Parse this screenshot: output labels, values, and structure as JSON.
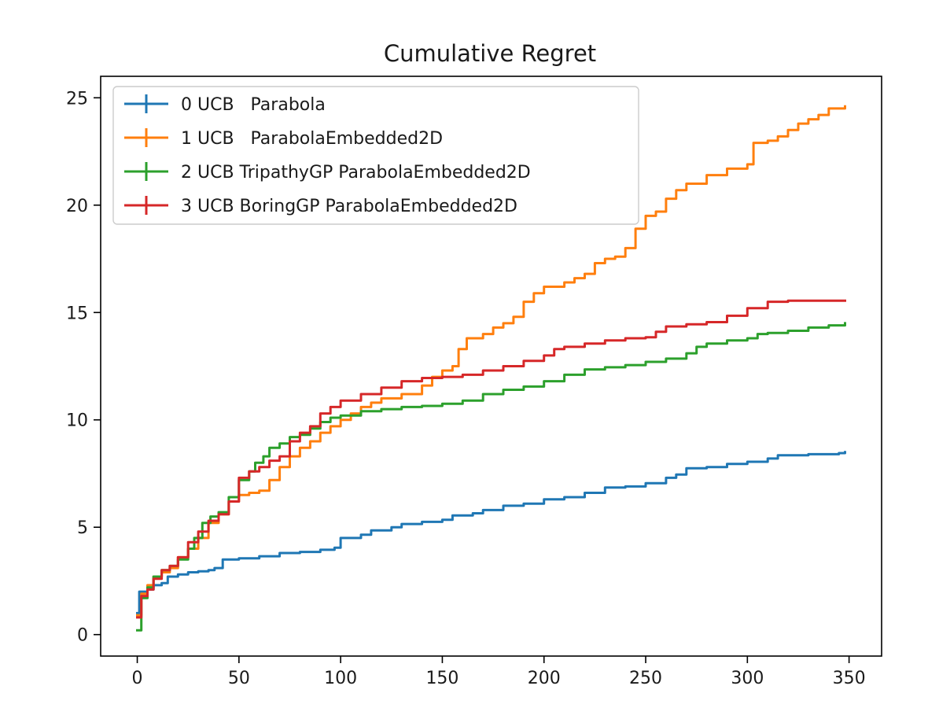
{
  "chart_data": {
    "type": "line",
    "title": "Cumulative Regret",
    "xlabel": "",
    "ylabel": "",
    "xlim": [
      -18,
      366
    ],
    "ylim": [
      -1,
      26
    ],
    "xticks": [
      0,
      50,
      100,
      150,
      200,
      250,
      300,
      350
    ],
    "yticks": [
      0,
      5,
      10,
      15,
      20,
      25
    ],
    "grid": false,
    "legend_position": "upper-left",
    "series": [
      {
        "name": "0 UCB   Parabola",
        "color": "#1f77b4",
        "points": [
          [
            0,
            1.0
          ],
          [
            1,
            2.0
          ],
          [
            5,
            2.1
          ],
          [
            8,
            2.3
          ],
          [
            12,
            2.4
          ],
          [
            15,
            2.7
          ],
          [
            20,
            2.8
          ],
          [
            25,
            2.9
          ],
          [
            30,
            2.95
          ],
          [
            35,
            3.0
          ],
          [
            38,
            3.1
          ],
          [
            42,
            3.5
          ],
          [
            50,
            3.55
          ],
          [
            60,
            3.65
          ],
          [
            70,
            3.8
          ],
          [
            80,
            3.85
          ],
          [
            90,
            3.95
          ],
          [
            97,
            4.05
          ],
          [
            100,
            4.5
          ],
          [
            110,
            4.65
          ],
          [
            115,
            4.85
          ],
          [
            125,
            5.0
          ],
          [
            130,
            5.15
          ],
          [
            140,
            5.25
          ],
          [
            150,
            5.35
          ],
          [
            155,
            5.55
          ],
          [
            165,
            5.65
          ],
          [
            170,
            5.8
          ],
          [
            180,
            6.0
          ],
          [
            190,
            6.1
          ],
          [
            200,
            6.3
          ],
          [
            210,
            6.4
          ],
          [
            220,
            6.6
          ],
          [
            230,
            6.85
          ],
          [
            240,
            6.9
          ],
          [
            250,
            7.05
          ],
          [
            260,
            7.3
          ],
          [
            265,
            7.45
          ],
          [
            270,
            7.75
          ],
          [
            280,
            7.8
          ],
          [
            290,
            7.95
          ],
          [
            300,
            8.05
          ],
          [
            310,
            8.2
          ],
          [
            315,
            8.35
          ],
          [
            330,
            8.4
          ],
          [
            345,
            8.45
          ],
          [
            348,
            8.5
          ]
        ]
      },
      {
        "name": "1 UCB   ParabolaEmbedded2D",
        "color": "#ff7f0e",
        "points": [
          [
            0,
            0.9
          ],
          [
            2,
            1.9
          ],
          [
            5,
            2.3
          ],
          [
            8,
            2.7
          ],
          [
            12,
            2.9
          ],
          [
            16,
            3.1
          ],
          [
            20,
            3.6
          ],
          [
            25,
            4.0
          ],
          [
            30,
            4.5
          ],
          [
            35,
            5.2
          ],
          [
            40,
            5.6
          ],
          [
            45,
            6.2
          ],
          [
            50,
            6.5
          ],
          [
            55,
            6.6
          ],
          [
            60,
            6.7
          ],
          [
            65,
            7.2
          ],
          [
            70,
            7.8
          ],
          [
            75,
            8.3
          ],
          [
            80,
            8.7
          ],
          [
            85,
            9.0
          ],
          [
            90,
            9.4
          ],
          [
            95,
            9.7
          ],
          [
            100,
            10.0
          ],
          [
            105,
            10.3
          ],
          [
            110,
            10.6
          ],
          [
            115,
            10.8
          ],
          [
            120,
            11.0
          ],
          [
            130,
            11.2
          ],
          [
            140,
            11.6
          ],
          [
            145,
            12.0
          ],
          [
            150,
            12.3
          ],
          [
            155,
            12.5
          ],
          [
            158,
            13.3
          ],
          [
            162,
            13.8
          ],
          [
            170,
            14.0
          ],
          [
            175,
            14.3
          ],
          [
            180,
            14.5
          ],
          [
            185,
            14.8
          ],
          [
            190,
            15.5
          ],
          [
            195,
            15.9
          ],
          [
            200,
            16.2
          ],
          [
            210,
            16.4
          ],
          [
            215,
            16.6
          ],
          [
            220,
            16.8
          ],
          [
            225,
            17.3
          ],
          [
            230,
            17.5
          ],
          [
            235,
            17.6
          ],
          [
            240,
            18.0
          ],
          [
            245,
            18.9
          ],
          [
            250,
            19.5
          ],
          [
            255,
            19.7
          ],
          [
            260,
            20.3
          ],
          [
            265,
            20.7
          ],
          [
            270,
            21.0
          ],
          [
            280,
            21.4
          ],
          [
            290,
            21.7
          ],
          [
            300,
            21.9
          ],
          [
            303,
            22.9
          ],
          [
            310,
            23.0
          ],
          [
            315,
            23.2
          ],
          [
            320,
            23.5
          ],
          [
            325,
            23.8
          ],
          [
            330,
            24.0
          ],
          [
            335,
            24.2
          ],
          [
            340,
            24.5
          ],
          [
            348,
            24.6
          ]
        ]
      },
      {
        "name": "2 UCB TripathyGP ParabolaEmbedded2D",
        "color": "#2ca02c",
        "points": [
          [
            0,
            0.2
          ],
          [
            2,
            1.7
          ],
          [
            5,
            2.2
          ],
          [
            8,
            2.7
          ],
          [
            12,
            3.0
          ],
          [
            16,
            3.2
          ],
          [
            20,
            3.5
          ],
          [
            25,
            4.0
          ],
          [
            28,
            4.5
          ],
          [
            32,
            5.2
          ],
          [
            36,
            5.5
          ],
          [
            40,
            5.7
          ],
          [
            45,
            6.4
          ],
          [
            50,
            7.2
          ],
          [
            55,
            7.6
          ],
          [
            58,
            8.0
          ],
          [
            62,
            8.3
          ],
          [
            65,
            8.7
          ],
          [
            70,
            8.9
          ],
          [
            75,
            9.2
          ],
          [
            80,
            9.3
          ],
          [
            85,
            9.6
          ],
          [
            90,
            9.9
          ],
          [
            95,
            10.1
          ],
          [
            100,
            10.2
          ],
          [
            110,
            10.4
          ],
          [
            120,
            10.5
          ],
          [
            130,
            10.6
          ],
          [
            140,
            10.65
          ],
          [
            150,
            10.75
          ],
          [
            160,
            10.9
          ],
          [
            170,
            11.2
          ],
          [
            180,
            11.4
          ],
          [
            190,
            11.55
          ],
          [
            200,
            11.8
          ],
          [
            210,
            12.1
          ],
          [
            220,
            12.35
          ],
          [
            230,
            12.45
          ],
          [
            240,
            12.55
          ],
          [
            250,
            12.7
          ],
          [
            260,
            12.85
          ],
          [
            270,
            13.1
          ],
          [
            275,
            13.4
          ],
          [
            280,
            13.55
          ],
          [
            290,
            13.7
          ],
          [
            300,
            13.8
          ],
          [
            305,
            14.0
          ],
          [
            310,
            14.05
          ],
          [
            320,
            14.15
          ],
          [
            330,
            14.3
          ],
          [
            340,
            14.4
          ],
          [
            348,
            14.5
          ]
        ]
      },
      {
        "name": "3 UCB BoringGP ParabolaEmbedded2D",
        "color": "#d62728",
        "points": [
          [
            0,
            0.8
          ],
          [
            2,
            1.8
          ],
          [
            5,
            2.1
          ],
          [
            8,
            2.6
          ],
          [
            12,
            3.0
          ],
          [
            16,
            3.2
          ],
          [
            20,
            3.6
          ],
          [
            25,
            4.3
          ],
          [
            30,
            4.8
          ],
          [
            35,
            5.3
          ],
          [
            40,
            5.6
          ],
          [
            45,
            6.2
          ],
          [
            50,
            7.3
          ],
          [
            55,
            7.6
          ],
          [
            60,
            7.8
          ],
          [
            65,
            8.1
          ],
          [
            70,
            8.3
          ],
          [
            75,
            9.0
          ],
          [
            80,
            9.4
          ],
          [
            85,
            9.7
          ],
          [
            90,
            10.3
          ],
          [
            95,
            10.6
          ],
          [
            100,
            10.9
          ],
          [
            110,
            11.2
          ],
          [
            120,
            11.5
          ],
          [
            130,
            11.8
          ],
          [
            140,
            11.95
          ],
          [
            150,
            12.0
          ],
          [
            160,
            12.1
          ],
          [
            170,
            12.3
          ],
          [
            180,
            12.5
          ],
          [
            190,
            12.75
          ],
          [
            200,
            13.0
          ],
          [
            205,
            13.3
          ],
          [
            210,
            13.4
          ],
          [
            220,
            13.55
          ],
          [
            230,
            13.7
          ],
          [
            240,
            13.8
          ],
          [
            250,
            13.85
          ],
          [
            255,
            14.1
          ],
          [
            260,
            14.35
          ],
          [
            270,
            14.45
          ],
          [
            280,
            14.55
          ],
          [
            290,
            14.85
          ],
          [
            300,
            15.2
          ],
          [
            310,
            15.5
          ],
          [
            320,
            15.55
          ],
          [
            348,
            15.55
          ]
        ]
      }
    ]
  }
}
